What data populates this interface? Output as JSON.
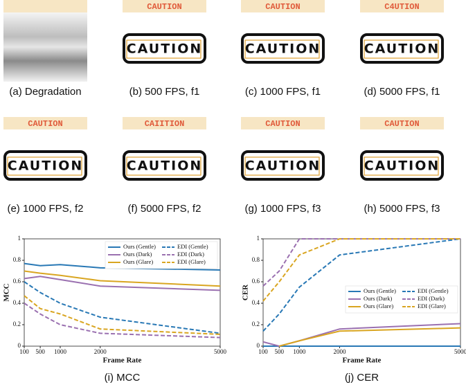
{
  "panels": [
    {
      "caption": "(a) Degradation"
    },
    {
      "ocr": "CAUTION",
      "image_text": "CAUTION",
      "caption": "(b) 500 FPS, f1"
    },
    {
      "ocr": "CAUTION",
      "image_text": "CAUTION",
      "caption": "(c) 1000 FPS, f1"
    },
    {
      "ocr": "C4UTION",
      "image_text": "CAUTION",
      "caption": "(d) 5000 FPS, f1"
    },
    {
      "ocr": "CAUTION",
      "image_text": "CAUTION",
      "caption": "(e) 1000 FPS, f2"
    },
    {
      "ocr": "CAIITION",
      "image_text": "CAUTION",
      "caption": "(f) 5000 FPS, f2"
    },
    {
      "ocr": "CAUTION",
      "image_text": "CAUTION",
      "caption": "(g) 1000 FPS, f3"
    },
    {
      "ocr": "CAUTION",
      "image_text": "CAUTION",
      "caption": "(h) 5000 FPS, f3"
    }
  ],
  "chart_data": [
    {
      "type": "line",
      "caption": "(i) MCC",
      "x_label": "Frame Rate",
      "y_label": "MCC",
      "x": [
        100,
        500,
        1000,
        2000,
        5000
      ],
      "xlim": [
        100,
        5000
      ],
      "xticks": [
        100,
        500,
        1000,
        2000,
        5000
      ],
      "ylim": [
        0,
        1
      ],
      "yticks": [
        0,
        0.2,
        0.4,
        0.6,
        0.8,
        1
      ],
      "legend": "upper right",
      "series": [
        {
          "name": "Ours (Gentle)",
          "color": "#2878b5",
          "style": "solid",
          "values": [
            0.77,
            0.75,
            0.76,
            0.73,
            0.71
          ]
        },
        {
          "name": "Ours (Dark)",
          "color": "#9a70b0",
          "style": "solid",
          "values": [
            0.63,
            0.65,
            0.62,
            0.56,
            0.52
          ]
        },
        {
          "name": "Ours (Glare)",
          "color": "#d9a520",
          "style": "solid",
          "values": [
            0.7,
            0.68,
            0.66,
            0.61,
            0.56
          ]
        },
        {
          "name": "EDI (Gentle)",
          "color": "#2878b5",
          "style": "dashed",
          "values": [
            0.6,
            0.5,
            0.4,
            0.27,
            0.12
          ]
        },
        {
          "name": "EDI (Dark)",
          "color": "#9a70b0",
          "style": "dashed",
          "values": [
            0.4,
            0.3,
            0.2,
            0.12,
            0.08
          ]
        },
        {
          "name": "EDI (Glare)",
          "color": "#d9a520",
          "style": "dashed",
          "values": [
            0.47,
            0.35,
            0.3,
            0.16,
            0.11
          ]
        }
      ]
    },
    {
      "type": "line",
      "caption": "(j) CER",
      "x_label": "Frame Rate",
      "y_label": "CER",
      "x": [
        100,
        500,
        1000,
        2000,
        5000
      ],
      "xlim": [
        100,
        5000
      ],
      "xticks": [
        100,
        500,
        1000,
        2000,
        5000
      ],
      "ylim": [
        0,
        1
      ],
      "yticks": [
        0,
        0.2,
        0.4,
        0.6,
        0.8,
        1
      ],
      "legend": "center right",
      "series": [
        {
          "name": "Ours (Gentle)",
          "color": "#2878b5",
          "style": "solid",
          "values": [
            0,
            0,
            0,
            0,
            0
          ]
        },
        {
          "name": "Ours (Dark)",
          "color": "#9a70b0",
          "style": "solid",
          "values": [
            0.04,
            0,
            0.05,
            0.16,
            0.21
          ]
        },
        {
          "name": "Ours (Glare)",
          "color": "#d9a520",
          "style": "solid",
          "values": [
            null,
            0,
            0.05,
            0.14,
            0.17
          ]
        },
        {
          "name": "EDI (Gentle)",
          "color": "#2878b5",
          "style": "dashed",
          "values": [
            0.14,
            0.3,
            0.55,
            0.85,
            1
          ]
        },
        {
          "name": "EDI (Dark)",
          "color": "#9a70b0",
          "style": "dashed",
          "values": [
            0.56,
            0.7,
            1,
            1,
            1
          ]
        },
        {
          "name": "EDI (Glare)",
          "color": "#d9a520",
          "style": "dashed",
          "values": [
            0.42,
            0.6,
            0.85,
            1,
            1
          ]
        }
      ]
    }
  ]
}
